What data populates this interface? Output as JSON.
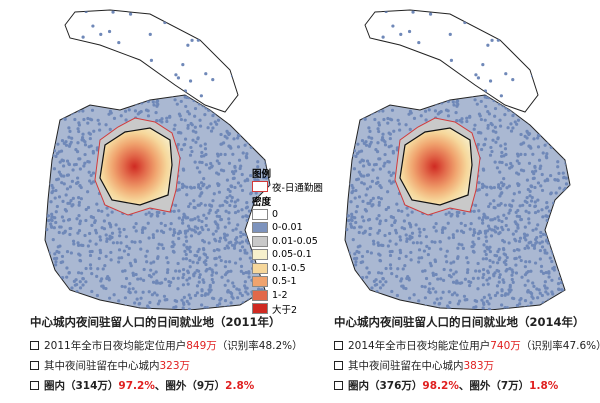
{
  "legend": {
    "title": "图例",
    "boundary": {
      "label": "夜-日通勤圈",
      "color": "#d23a3a"
    },
    "density_title": "密度",
    "items": [
      {
        "label": "0",
        "color": "#ffffff"
      },
      {
        "label": "0-0.01",
        "color": "#7d93bd"
      },
      {
        "label": "0.01-0.05",
        "color": "#c9c9c9"
      },
      {
        "label": "0.05-0.1",
        "color": "#f7f0cc"
      },
      {
        "label": "0.1-0.5",
        "color": "#f6d79b"
      },
      {
        "label": "0.5-1",
        "color": "#f0a36e"
      },
      {
        "label": "1-2",
        "color": "#e2694a"
      },
      {
        "label": "大于2",
        "color": "#cf2a22"
      }
    ]
  },
  "panels": [
    {
      "title": "中心城内夜间驻留人口的日间就业地（2011年）",
      "lines": [
        [
          {
            "text": "2011年全市日夜均能定位用户",
            "color": "#222222"
          },
          {
            "text": "849万",
            "color": "#e02020"
          },
          {
            "text": "（识别率48.2%）",
            "color": "#222222"
          }
        ],
        [
          {
            "text": "其中夜间驻留在中心城内",
            "color": "#222222"
          },
          {
            "text": "323万",
            "color": "#e02020"
          }
        ],
        [
          {
            "text": "圈内（314万）",
            "color": "#222222"
          },
          {
            "text": "97.2%",
            "color": "#e02020"
          },
          {
            "text": "、圈外（9万）",
            "color": "#222222"
          },
          {
            "text": "2.8%",
            "color": "#e02020"
          }
        ]
      ]
    },
    {
      "title": "中心城内夜间驻留人口的日间就业地（2014年）",
      "lines": [
        [
          {
            "text": "2014年全市日夜均能定位用户",
            "color": "#222222"
          },
          {
            "text": "740万",
            "color": "#e02020"
          },
          {
            "text": "（识别率47.6%）",
            "color": "#222222"
          }
        ],
        [
          {
            "text": "其中夜间驻留在中心城内",
            "color": "#222222"
          },
          {
            "text": "383万",
            "color": "#e02020"
          }
        ],
        [
          {
            "text": "圈内（376万）",
            "color": "#222222"
          },
          {
            "text": "98.2%",
            "color": "#e02020"
          },
          {
            "text": "、圈外（7万）",
            "color": "#222222"
          },
          {
            "text": "1.8%",
            "color": "#e02020"
          }
        ]
      ]
    }
  ]
}
